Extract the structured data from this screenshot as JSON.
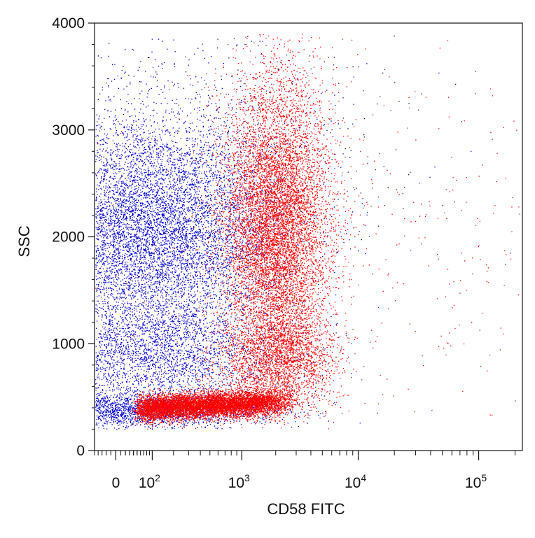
{
  "chart_data": {
    "type": "scatter",
    "xlabel": "CD58 FITC",
    "ylabel": "SSC",
    "x_scale": "biexponential",
    "xlim": [
      -50,
      230000
    ],
    "ylim": [
      0,
      4000
    ],
    "grid": false,
    "x_ticks": [
      {
        "value": 0,
        "label": "0"
      },
      {
        "value": 100,
        "base": "10",
        "exp": "2"
      },
      {
        "value": 1000,
        "base": "10",
        "exp": "3"
      },
      {
        "value": 10000,
        "base": "10",
        "exp": "4"
      },
      {
        "value": 100000,
        "base": "10",
        "exp": "5"
      }
    ],
    "y_ticks": [
      0,
      1000,
      2000,
      3000,
      4000
    ],
    "series": [
      {
        "color": "#0000cc",
        "populations": [
          {
            "x_center": 90,
            "y_center": 2050,
            "x_spread": 0.55,
            "y_spread": 520,
            "count": 9000
          },
          {
            "x_center": 95,
            "y_center": 900,
            "x_spread": 0.55,
            "y_spread": 260,
            "count": 3000
          },
          {
            "x_center": 40,
            "y_center": 380,
            "x_spread": 0.6,
            "y_spread": 80,
            "count": 2500
          },
          {
            "x_center": 250,
            "y_center": 2900,
            "x_spread": 0.9,
            "y_spread": 600,
            "count": 900
          }
        ]
      },
      {
        "color": "#ff0000",
        "populations": [
          {
            "x_center": 2000,
            "y_center": 2100,
            "x_spread": 0.22,
            "y_spread": 700,
            "count": 9000
          },
          {
            "x_center": 2100,
            "y_center": 850,
            "x_spread": 0.25,
            "y_spread": 220,
            "count": 2200
          },
          {
            "x_from": 60,
            "x_to": 2000,
            "y_center": 400,
            "y_spread": 60,
            "count": 8000
          },
          {
            "x_center": 20000,
            "y_center": 1900,
            "x_spread": 1.4,
            "y_spread": 900,
            "count": 500
          }
        ]
      }
    ]
  }
}
